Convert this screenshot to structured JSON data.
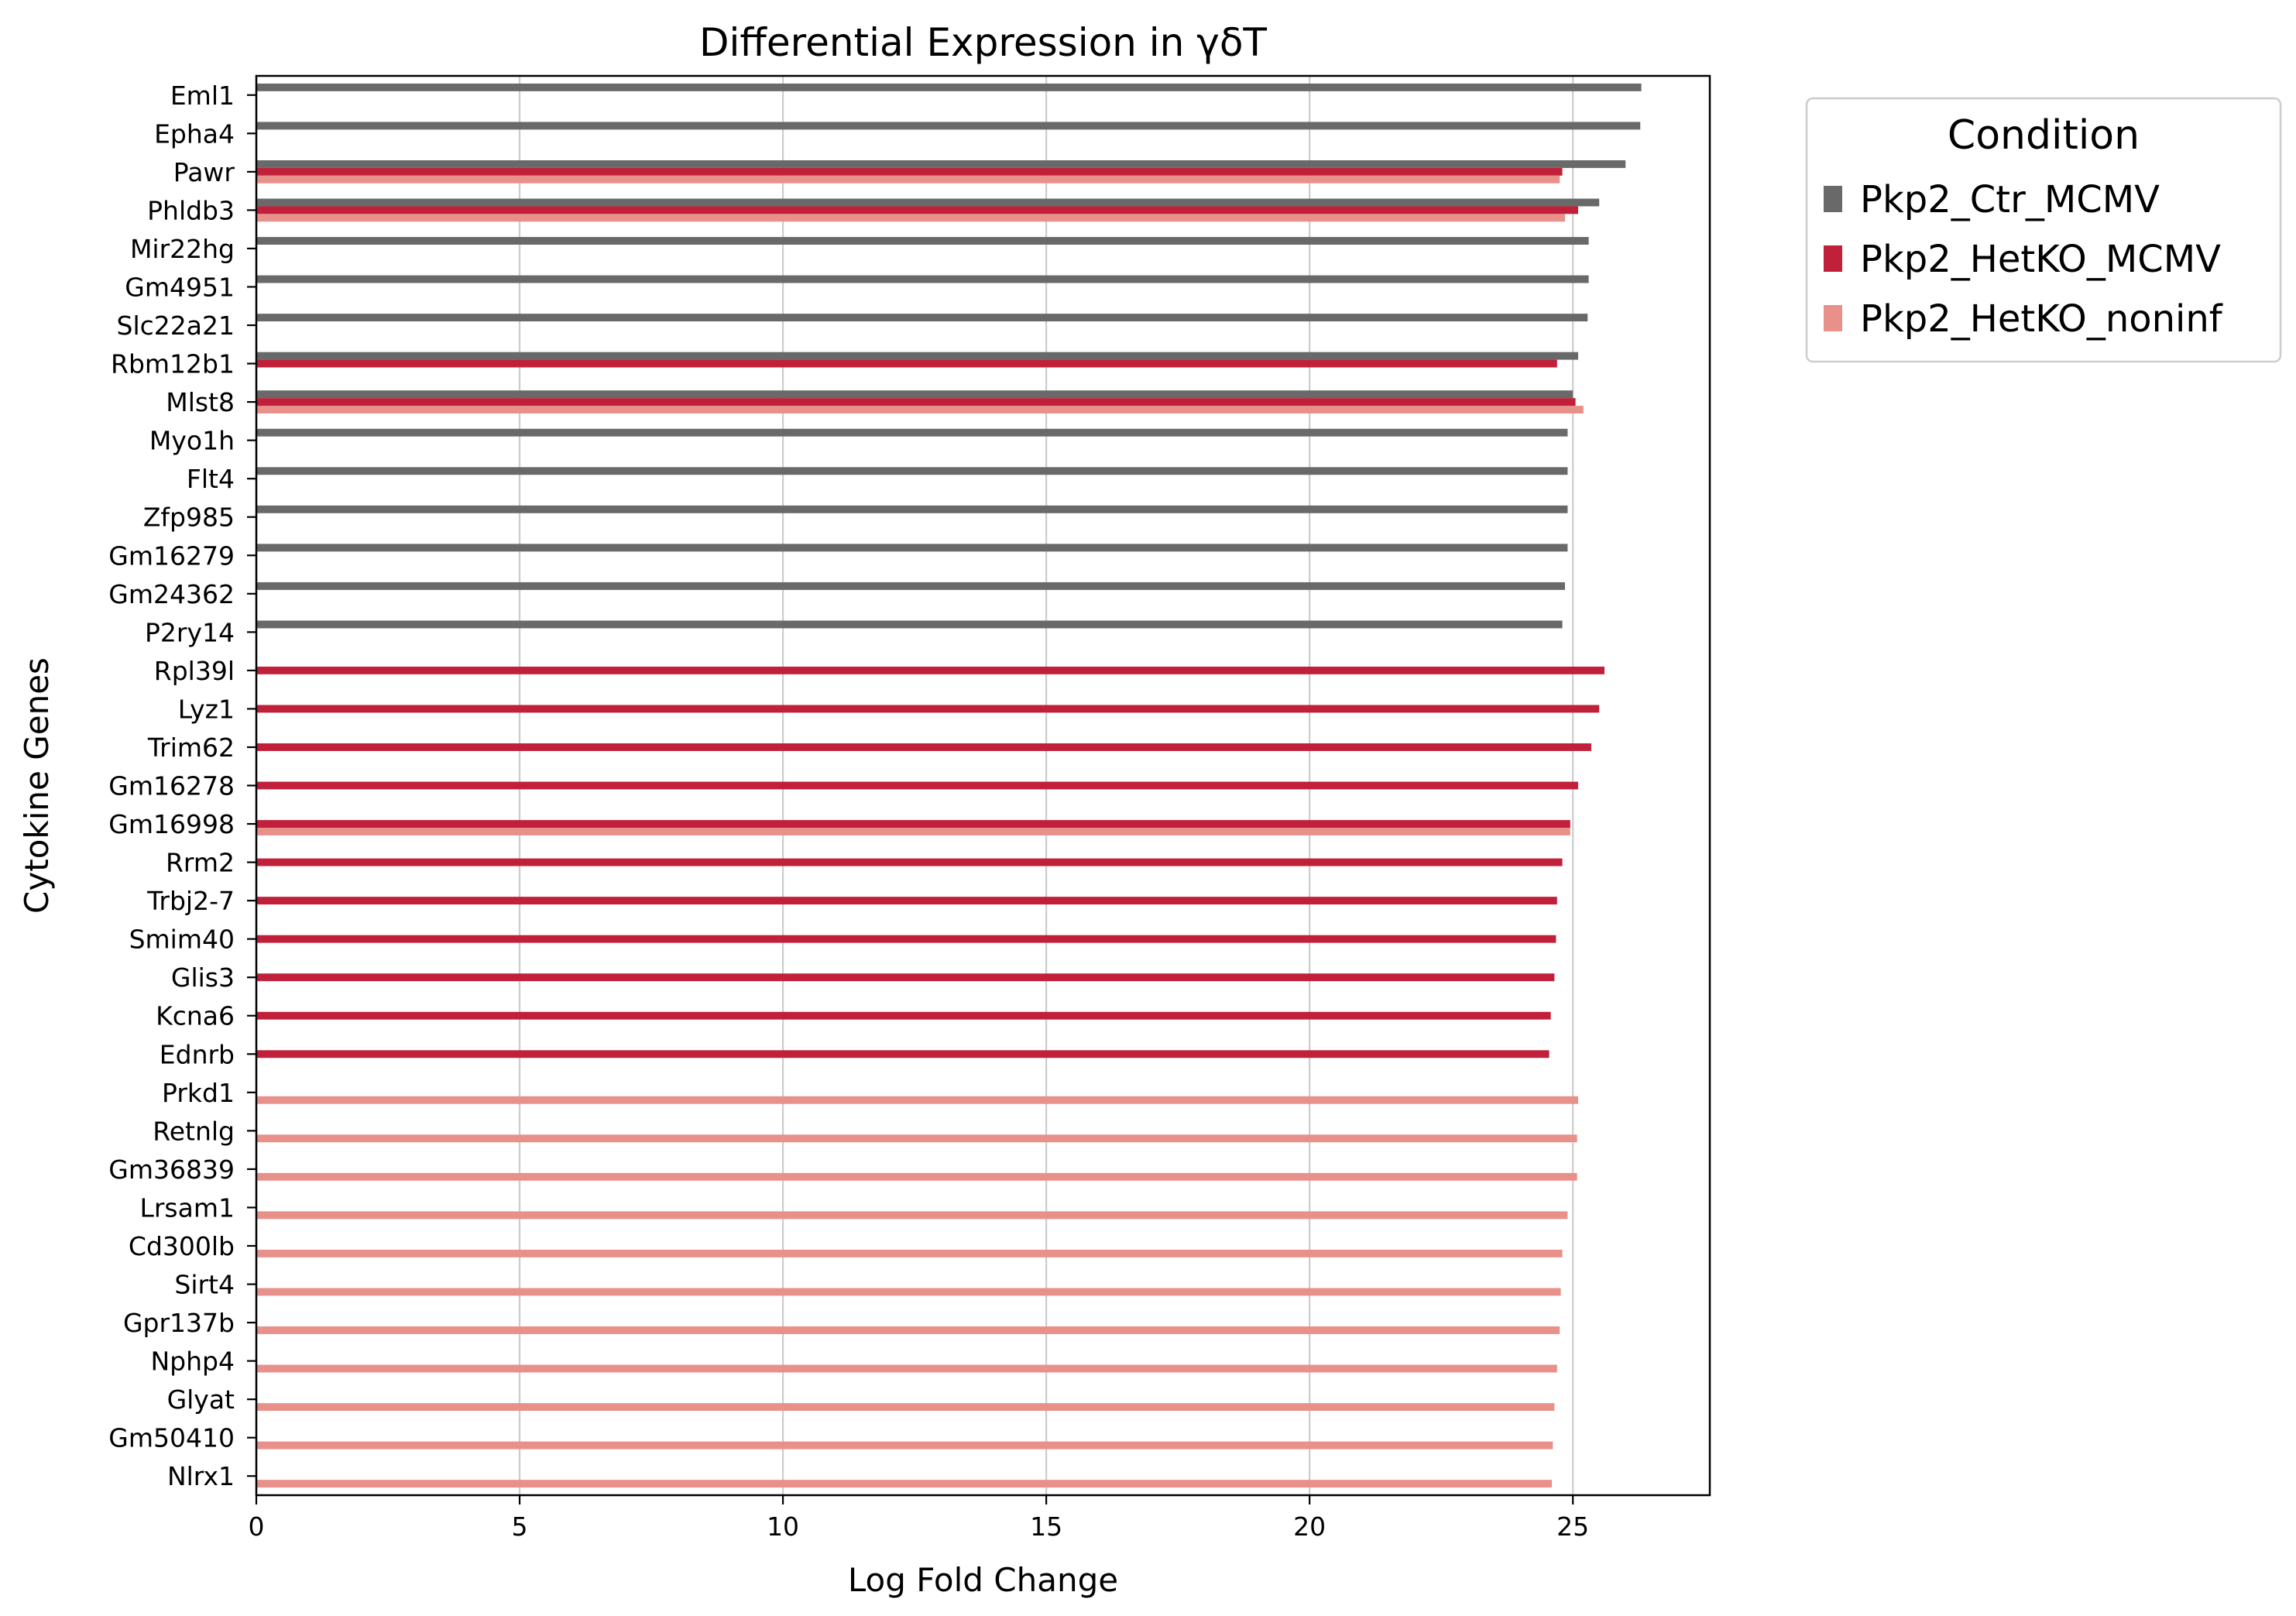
{
  "chart_data": {
    "type": "bar",
    "orientation": "horizontal",
    "title": "Differential Expression in γδT",
    "xlabel": "Log Fold Change",
    "ylabel": "Cytokine Genes",
    "xlim": [
      0,
      27.6
    ],
    "xticks": [
      0,
      5,
      10,
      15,
      20,
      25
    ],
    "grid": "vertical",
    "legend": {
      "title": "Condition",
      "placement": "outside-top-right"
    },
    "categories": [
      "Eml1",
      "Epha4",
      "Pawr",
      "Phldb3",
      "Mir22hg",
      "Gm4951",
      "Slc22a21",
      "Rbm12b1",
      "Mlst8",
      "Myo1h",
      "Flt4",
      "Zfp985",
      "Gm16279",
      "Gm24362",
      "P2ry14",
      "Rpl39l",
      "Lyz1",
      "Trim62",
      "Gm16278",
      "Gm16998",
      "Rrm2",
      "Trbj2-7",
      "Smim40",
      "Glis3",
      "Kcna6",
      "Ednrb",
      "Prkd1",
      "Retnlg",
      "Gm36839",
      "Lrsam1",
      "Cd300lb",
      "Sirt4",
      "Gpr137b",
      "Nphp4",
      "Glyat",
      "Gm50410",
      "Nlrx1"
    ],
    "series": [
      {
        "name": "Pkp2_Ctr_MCMV",
        "color": "#696969",
        "values": [
          26.3,
          26.28,
          26.0,
          25.5,
          25.3,
          25.3,
          25.28,
          25.1,
          25.0,
          24.9,
          24.9,
          24.9,
          24.9,
          24.85,
          24.8,
          null,
          null,
          null,
          null,
          null,
          null,
          null,
          null,
          null,
          null,
          null,
          null,
          null,
          null,
          null,
          null,
          null,
          null,
          null,
          null,
          null,
          null
        ]
      },
      {
        "name": "Pkp2_HetKO_MCMV",
        "color": "#c0203a",
        "values": [
          null,
          null,
          24.8,
          25.1,
          null,
          null,
          null,
          24.7,
          25.05,
          null,
          null,
          null,
          null,
          null,
          null,
          25.6,
          25.5,
          25.35,
          25.1,
          24.95,
          24.8,
          24.7,
          24.68,
          24.65,
          24.58,
          24.55,
          null,
          null,
          null,
          null,
          null,
          null,
          null,
          null,
          null,
          null,
          null
        ]
      },
      {
        "name": "Pkp2_HetKO_noninf",
        "color": "#e8908a",
        "values": [
          null,
          null,
          24.75,
          24.85,
          null,
          null,
          null,
          null,
          25.2,
          null,
          null,
          null,
          null,
          null,
          null,
          null,
          null,
          null,
          null,
          24.95,
          null,
          null,
          null,
          null,
          null,
          null,
          25.1,
          25.08,
          25.08,
          24.9,
          24.8,
          24.77,
          24.75,
          24.7,
          24.65,
          24.62,
          24.6
        ]
      }
    ]
  }
}
